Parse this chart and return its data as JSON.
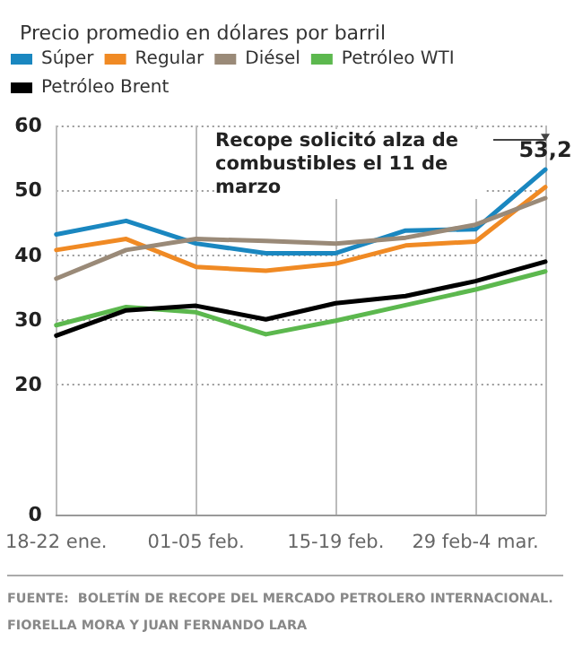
{
  "chart_data": {
    "type": "line",
    "title": "Precio promedio en dólares por barril",
    "categories": [
      "18-22 ene.",
      null,
      "01-05 feb.",
      null,
      "15-19 feb.",
      null,
      "29 feb-4 mar.",
      null
    ],
    "series": [
      {
        "name": "Súper",
        "color": "#1a87c0",
        "values": [
          43.2,
          45.3,
          41.8,
          40.3,
          40.3,
          43.8,
          44.0,
          53.2
        ],
        "value_labels": [
          null,
          null,
          null,
          null,
          null,
          null,
          null,
          "53,2"
        ]
      },
      {
        "name": "Regular",
        "color": "#f08a24",
        "values": [
          40.8,
          42.5,
          38.2,
          37.6,
          38.7,
          41.5,
          42.1,
          50.5
        ]
      },
      {
        "name": "Diésel",
        "color": "#9a8a78",
        "values": [
          36.4,
          40.8,
          42.5,
          42.2,
          41.8,
          42.7,
          44.7,
          48.8
        ]
      },
      {
        "name": "Petróleo WTI",
        "color": "#5cb84e",
        "values": [
          29.2,
          32.0,
          31.2,
          27.8,
          29.9,
          32.3,
          34.7,
          37.5
        ]
      },
      {
        "name": "Petróleo Brent",
        "color": "#000000",
        "values": [
          27.6,
          31.5,
          32.2,
          30.1,
          32.6,
          33.7,
          36.0,
          39.0
        ]
      }
    ],
    "ylim": [
      0,
      60
    ],
    "yticks": [
      0,
      20,
      30,
      40,
      50,
      60
    ],
    "grid": true,
    "legend": "top",
    "marker": "none",
    "line_style": "solid",
    "annotations": [
      "Recope solicitó alza de combustibles el 11 de marzo",
      "FUENTE:  BOLETÍN DE RECOPE DEL MERCADO PETROLERO INTERNACIONAL.",
      "FIORELLA MORA Y JUAN FERNANDO LARA"
    ]
  }
}
